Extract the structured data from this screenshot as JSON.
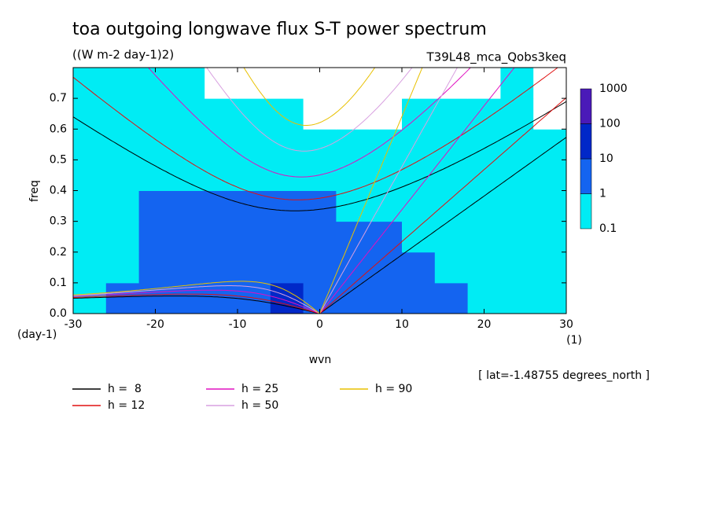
{
  "chart_data": {
    "type": "contour",
    "title": "toa outgoing longwave flux S-T power spectrum",
    "subtitle": "((W m-2 day-1)2)",
    "run_label": "T39L48_mca_Qobs3keq",
    "xlabel": "wvn",
    "ylabel": "freq",
    "xunit": "(1)",
    "yunit": "(day-1)",
    "note": "[ lat=-1.48755 degrees_north ]",
    "xlim": [
      -30,
      30
    ],
    "ylim": [
      0,
      0.8
    ],
    "xticks": [
      -30,
      -20,
      -10,
      0,
      10,
      20,
      30
    ],
    "yticks": [
      {
        "value": 0,
        "label": "0.0"
      },
      0.1,
      0.2,
      0.3,
      0.4,
      0.5,
      0.6,
      0.7
    ],
    "levels": [
      0.1,
      1,
      10,
      100,
      1000
    ],
    "level_colors": [
      "#00ecf4",
      "#1464f0",
      "#0028c8",
      "#4a1ab8"
    ],
    "x": [
      -28,
      -24,
      -20,
      -16,
      -12,
      -8,
      -4,
      0,
      4,
      8,
      12,
      16,
      20,
      24,
      28
    ],
    "y": [
      0.05,
      0.15,
      0.25,
      0.35,
      0.45,
      0.55,
      0.65,
      0.75
    ],
    "z": [
      [
        0.9,
        1.2,
        1.5,
        3,
        5,
        8,
        12,
        6,
        3,
        4,
        2,
        1.2,
        0.8,
        0.5,
        0.3
      ],
      [
        0.6,
        0.8,
        1.2,
        1.5,
        2,
        2.5,
        3,
        2,
        3,
        4,
        1.5,
        0.9,
        0.6,
        0.3,
        0.2
      ],
      [
        0.9,
        0.8,
        1.2,
        1.5,
        2,
        2,
        1.5,
        1.2,
        2,
        3,
        0.9,
        0.5,
        0.4,
        0.2,
        0.1
      ],
      [
        0.8,
        0.9,
        1.5,
        1.2,
        1.5,
        2,
        1.5,
        1.2,
        0.6,
        0.8,
        0.5,
        0.4,
        0.3,
        0.2,
        0.1
      ],
      [
        0.8,
        0.7,
        0.7,
        0.8,
        0.6,
        0.5,
        0.5,
        0.4,
        0.3,
        0.4,
        0.5,
        0.3,
        0.2,
        0.15,
        0.1
      ],
      [
        0.6,
        0.6,
        0.5,
        0.5,
        0.5,
        0.4,
        0.3,
        0.2,
        0.15,
        0.2,
        0.3,
        0.3,
        0.2,
        0.1,
        0.1
      ],
      [
        0.5,
        0.5,
        0.5,
        0.4,
        0.3,
        0.2,
        0.1,
        0.05,
        0.05,
        0.05,
        0.2,
        0.3,
        0.2,
        0.1,
        0.05
      ],
      [
        0.3,
        0.3,
        0.2,
        0.15,
        0.05,
        0.05,
        0.05,
        0.05,
        0.05,
        0.05,
        0.05,
        0.05,
        0.05,
        0.1,
        0.05
      ]
    ],
    "series": [
      {
        "name": "h =  8",
        "h": 8,
        "color": "#000000"
      },
      {
        "name": "h = 12",
        "h": 12,
        "color": "#e01010"
      },
      {
        "name": "h = 25",
        "h": 25,
        "color": "#e010c0"
      },
      {
        "name": "h = 50",
        "h": 50,
        "color": "#d8a0e0"
      },
      {
        "name": "h = 90",
        "h": 90,
        "color": "#e8c000"
      }
    ]
  }
}
